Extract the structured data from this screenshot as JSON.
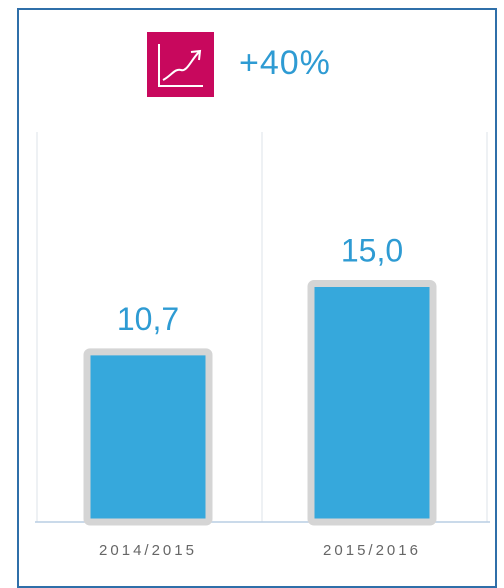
{
  "header": {
    "change_label": "+40%",
    "icon": "trend-up-chart-icon",
    "icon_color": "#c8085d"
  },
  "chart_data": {
    "type": "bar",
    "categories": [
      "2014/2015",
      "2015/2016"
    ],
    "values": [
      10.7,
      15.0
    ],
    "value_labels": [
      "10,7",
      "15,0"
    ],
    "title": "",
    "xlabel": "",
    "ylabel": "",
    "ylim": [
      0,
      16
    ],
    "grid": true,
    "bar_color": "#36a8dc",
    "bar_border_color": "#d5d5d5",
    "value_label_color": "#2e9bd3"
  }
}
